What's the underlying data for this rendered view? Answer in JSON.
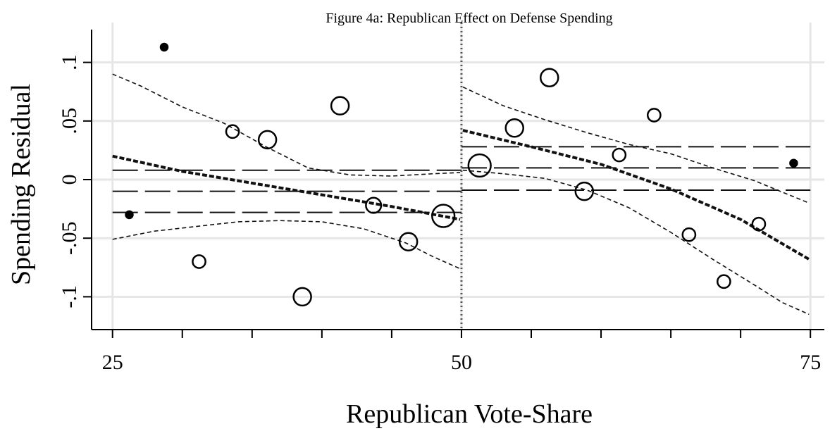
{
  "chart_data": {
    "type": "scatter",
    "title": "Figure 4a: Republican Effect on Defense Spending",
    "xlabel": "Republican Vote-Share",
    "ylabel": "Spending Residual",
    "xlim": [
      23.5,
      76
    ],
    "ylim": [
      -0.128,
      0.128
    ],
    "x_ticks": [
      25,
      50,
      75
    ],
    "x_ticks_labeled": [
      {
        "value": 25,
        "label": "25"
      },
      {
        "value": 50,
        "label": "50"
      },
      {
        "value": 75,
        "label": "75"
      }
    ],
    "x_minor_ticks": [
      30,
      35,
      40,
      45,
      55,
      60,
      65,
      70
    ],
    "y_ticks": [
      {
        "value": -0.1,
        "label": "-.1"
      },
      {
        "value": -0.05,
        "label": "-.05"
      },
      {
        "value": 0,
        "label": "0"
      },
      {
        "value": 0.05,
        "label": ".05"
      },
      {
        "value": 0.1,
        "label": ".1"
      }
    ],
    "grid": true,
    "cutoff": 50,
    "points": [
      {
        "x": 26.2,
        "y": -0.03,
        "size": 2,
        "filled": true
      },
      {
        "x": 28.7,
        "y": 0.113,
        "size": 2,
        "filled": true
      },
      {
        "x": 31.2,
        "y": -0.07,
        "size": 3,
        "filled": false
      },
      {
        "x": 33.6,
        "y": 0.041,
        "size": 3,
        "filled": false
      },
      {
        "x": 36.1,
        "y": 0.034,
        "size": 5,
        "filled": false
      },
      {
        "x": 38.6,
        "y": -0.1,
        "size": 5,
        "filled": false
      },
      {
        "x": 41.3,
        "y": 0.063,
        "size": 5,
        "filled": false
      },
      {
        "x": 43.7,
        "y": -0.022,
        "size": 4,
        "filled": false
      },
      {
        "x": 46.2,
        "y": -0.053,
        "size": 5,
        "filled": false
      },
      {
        "x": 48.7,
        "y": -0.031,
        "size": 7,
        "filled": false
      },
      {
        "x": 51.3,
        "y": 0.012,
        "size": 7,
        "filled": false
      },
      {
        "x": 53.8,
        "y": 0.044,
        "size": 5,
        "filled": false
      },
      {
        "x": 56.3,
        "y": 0.087,
        "size": 5,
        "filled": false
      },
      {
        "x": 58.8,
        "y": -0.01,
        "size": 5,
        "filled": false
      },
      {
        "x": 61.3,
        "y": 0.021,
        "size": 3,
        "filled": false
      },
      {
        "x": 63.8,
        "y": 0.055,
        "size": 3,
        "filled": false
      },
      {
        "x": 66.3,
        "y": -0.047,
        "size": 3,
        "filled": false
      },
      {
        "x": 68.8,
        "y": -0.087,
        "size": 3,
        "filled": false
      },
      {
        "x": 71.3,
        "y": -0.038,
        "size": 3,
        "filled": false
      },
      {
        "x": 73.8,
        "y": 0.014,
        "size": 2,
        "filled": true
      }
    ],
    "fit_left": {
      "x": [
        25,
        30,
        35,
        40,
        45,
        49.9
      ],
      "y": [
        0.02,
        0.007,
        -0.003,
        -0.013,
        -0.023,
        -0.034
      ]
    },
    "ci_left_upper": {
      "x": [
        25,
        27,
        30,
        33,
        36,
        39,
        42,
        45,
        48,
        49.9
      ],
      "y": [
        0.09,
        0.08,
        0.062,
        0.048,
        0.028,
        0.01,
        0.004,
        0.003,
        0.005,
        0.006
      ]
    },
    "ci_left_lower": {
      "x": [
        25,
        28,
        31,
        34,
        37,
        40,
        43,
        46,
        48,
        49.9
      ],
      "y": [
        -0.051,
        -0.044,
        -0.04,
        -0.036,
        -0.035,
        -0.036,
        -0.042,
        -0.054,
        -0.066,
        -0.076
      ]
    },
    "fit_right": {
      "x": [
        50.1,
        55,
        60,
        65,
        70,
        74.9
      ],
      "y": [
        0.042,
        0.028,
        0.013,
        -0.008,
        -0.034,
        -0.068
      ]
    },
    "ci_right_upper": {
      "x": [
        50.1,
        53,
        56,
        59,
        62,
        65,
        68,
        71,
        74.9
      ],
      "y": [
        0.079,
        0.063,
        0.051,
        0.04,
        0.03,
        0.022,
        0.01,
        -0.001,
        -0.02
      ]
    },
    "ci_right_lower": {
      "x": [
        50.1,
        53,
        56,
        59,
        62,
        65,
        68,
        71,
        73,
        74.9
      ],
      "y": [
        0.008,
        0.005,
        0.001,
        -0.009,
        -0.024,
        -0.045,
        -0.068,
        -0.09,
        -0.105,
        -0.115
      ]
    },
    "bands_left": [
      0.008,
      -0.01,
      -0.028
    ],
    "bands_right": [
      0.028,
      0.01,
      -0.009
    ]
  }
}
